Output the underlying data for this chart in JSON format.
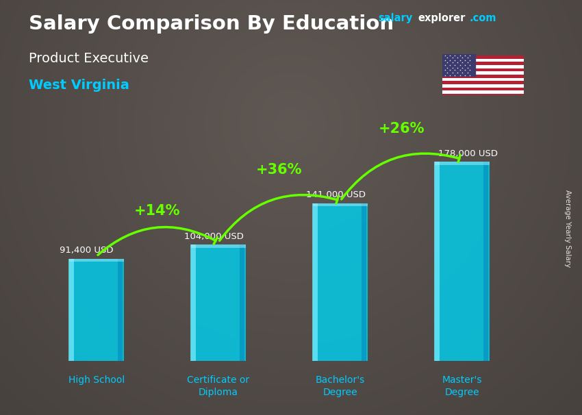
{
  "title_main": "Salary Comparison By Education",
  "title_sub": "Product Executive",
  "title_location": "West Virginia",
  "watermark_salary": "salary",
  "watermark_explorer": "explorer",
  "watermark_com": ".com",
  "ylabel": "Average Yearly Salary",
  "categories": [
    "High School",
    "Certificate or\nDiploma",
    "Bachelor's\nDegree",
    "Master's\nDegree"
  ],
  "values": [
    91400,
    104000,
    141000,
    178000
  ],
  "value_labels": [
    "91,400 USD",
    "104,000 USD",
    "141,000 USD",
    "178,000 USD"
  ],
  "pct_labels": [
    "+14%",
    "+36%",
    "+26%"
  ],
  "bar_color": "#00cfee",
  "bar_alpha": 0.82,
  "bar_left_highlight": "#7aeeff",
  "bar_right_shadow": "#0088bb",
  "title_color": "#ffffff",
  "subtitle_color": "#ffffff",
  "location_color": "#00ccff",
  "value_label_color": "#ffffff",
  "pct_color": "#66ff00",
  "arrow_color": "#66ff00",
  "wm_salary_color": "#00ccff",
  "wm_explorer_color": "#ffffff",
  "wm_com_color": "#00ccff",
  "bg_color": "#404040",
  "ylim_max": 230000,
  "bar_width": 0.45,
  "x_positions": [
    0,
    1,
    2,
    3
  ],
  "fig_width": 8.5,
  "fig_height": 6.06
}
